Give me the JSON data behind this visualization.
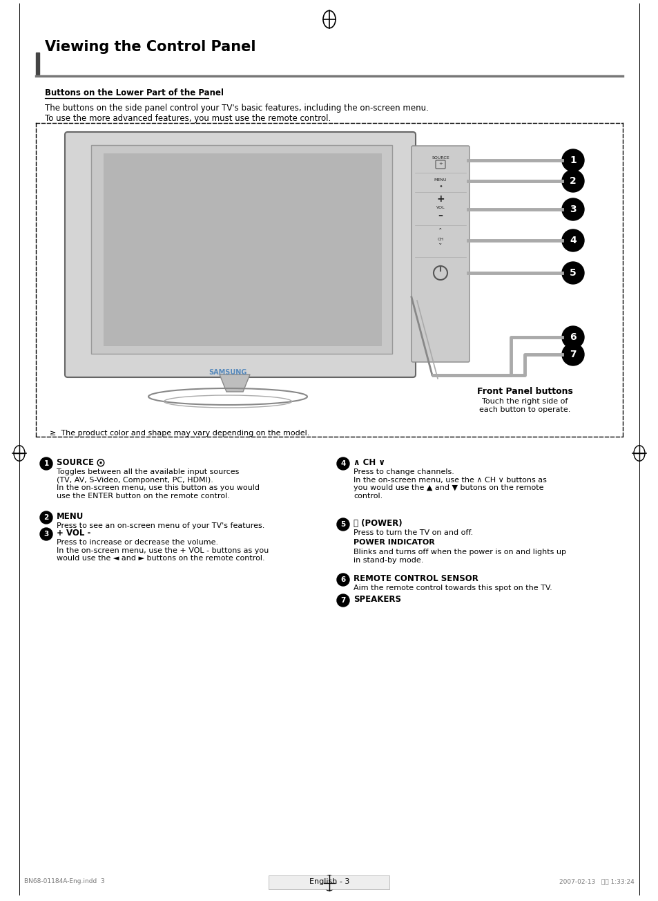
{
  "title": "Viewing the Control Panel",
  "subtitle": "Buttons on the Lower Part of the Panel",
  "desc1": "The buttons on the side panel control your TV's basic features, including the on-screen menu.",
  "desc2": "To use the more advanced features, you must use the remote control.",
  "front_panel_label": "Front Panel buttons",
  "front_panel_sub": "Touch the right side of\neach button to operate.",
  "product_note": "≥  The product color and shape may vary depending on the model.",
  "items": [
    {
      "num": "1",
      "label": "SOURCE ⨀",
      "desc": "Toggles between all the available input sources\n(TV, AV, S-Video, Component, PC, HDMI).\nIn the on-screen menu, use this button as you would\nuse the ENTER button on the remote control."
    },
    {
      "num": "2",
      "label": "MENU",
      "desc": "Press to see an on-screen menu of your TV's features."
    },
    {
      "num": "3",
      "label": "+ VOL -",
      "desc": "Press to increase or decrease the volume.\nIn the on-screen menu, use the + VOL - buttons as you\nwould use the ◄ and ► buttons on the remote control."
    },
    {
      "num": "4",
      "label": "∧ CH ∨",
      "desc": "Press to change channels.\nIn the on-screen menu, use the ∧ CH ∨ buttons as\nyou would use the ▲ and ▼ butons on the remote\ncontrol."
    },
    {
      "num": "5",
      "label": "⏻ (POWER)",
      "desc_line1": "Press to turn the TV on and off.",
      "desc_bold": "POWER INDICATOR",
      "desc_line2": "Blinks and turns off when the power is on and lights up\nin stand-by mode."
    },
    {
      "num": "6",
      "label": "REMOTE CONTROL SENSOR",
      "desc": "Aim the remote control towards this spot on the TV."
    },
    {
      "num": "7",
      "label": "SPEAKERS",
      "desc": ""
    }
  ],
  "footer_left": "BN68-01184A-Eng.indd  3",
  "footer_right": "2007-02-13   올전 1:33:24",
  "footer_center": "English - 3",
  "bg_color": "#ffffff",
  "text_color": "#000000",
  "gray_color": "#888888",
  "darkgray": "#555555",
  "lightgray": "#cccccc",
  "medgray": "#aaaaaa",
  "samsung_blue": "#5588bb"
}
